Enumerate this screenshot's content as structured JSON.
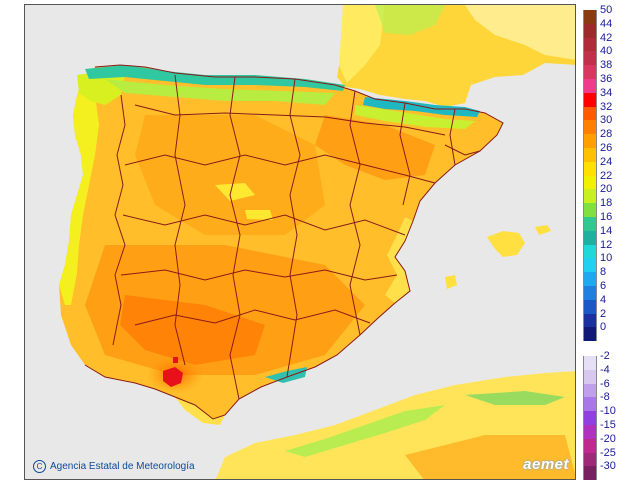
{
  "credit_text": "Agencia Estatal de Meteorología",
  "logo_text": "aemet",
  "legend": {
    "positive": [
      {
        "label": "50",
        "color": "#8b3a0f"
      },
      {
        "label": "44",
        "color": "#9c2a2a"
      },
      {
        "label": "42",
        "color": "#b02a3a"
      },
      {
        "label": "40",
        "color": "#c0304a"
      },
      {
        "label": "38",
        "color": "#d83860"
      },
      {
        "label": "36",
        "color": "#f03a8a"
      },
      {
        "label": "34",
        "color": "#ff0000"
      },
      {
        "label": "32",
        "color": "#ff5a00"
      },
      {
        "label": "30",
        "color": "#ff8000"
      },
      {
        "label": "28",
        "color": "#ffa000"
      },
      {
        "label": "26",
        "color": "#ffc000"
      },
      {
        "label": "24",
        "color": "#ffe000"
      },
      {
        "label": "22",
        "color": "#f0f000"
      },
      {
        "label": "20",
        "color": "#c8f020"
      },
      {
        "label": "18",
        "color": "#80e040"
      },
      {
        "label": "16",
        "color": "#30c890"
      },
      {
        "label": "14",
        "color": "#20b0a0"
      },
      {
        "label": "12",
        "color": "#20d8d8"
      },
      {
        "label": "10",
        "color": "#20d0f0"
      },
      {
        "label": "8",
        "color": "#20a8f0"
      },
      {
        "label": "6",
        "color": "#2080e0"
      },
      {
        "label": "4",
        "color": "#1a58c8"
      },
      {
        "label": "2",
        "color": "#1830a0"
      },
      {
        "label": "0",
        "color": "#101878"
      }
    ],
    "negative": [
      {
        "label": "-2",
        "color": "#e6e0f6"
      },
      {
        "label": "-4",
        "color": "#d8c8f0"
      },
      {
        "label": "-6",
        "color": "#c0a0ec"
      },
      {
        "label": "-8",
        "color": "#a878e8"
      },
      {
        "label": "-10",
        "color": "#9040e0"
      },
      {
        "label": "-15",
        "color": "#b030c0"
      },
      {
        "label": "-20",
        "color": "#c02890"
      },
      {
        "label": "-25",
        "color": "#a02878"
      },
      {
        "label": "-30",
        "color": "#782060"
      }
    ]
  },
  "colors": {
    "sea": "#e8e8e8",
    "land_base": "#ffbe2a",
    "border": "#8a1a1a"
  }
}
